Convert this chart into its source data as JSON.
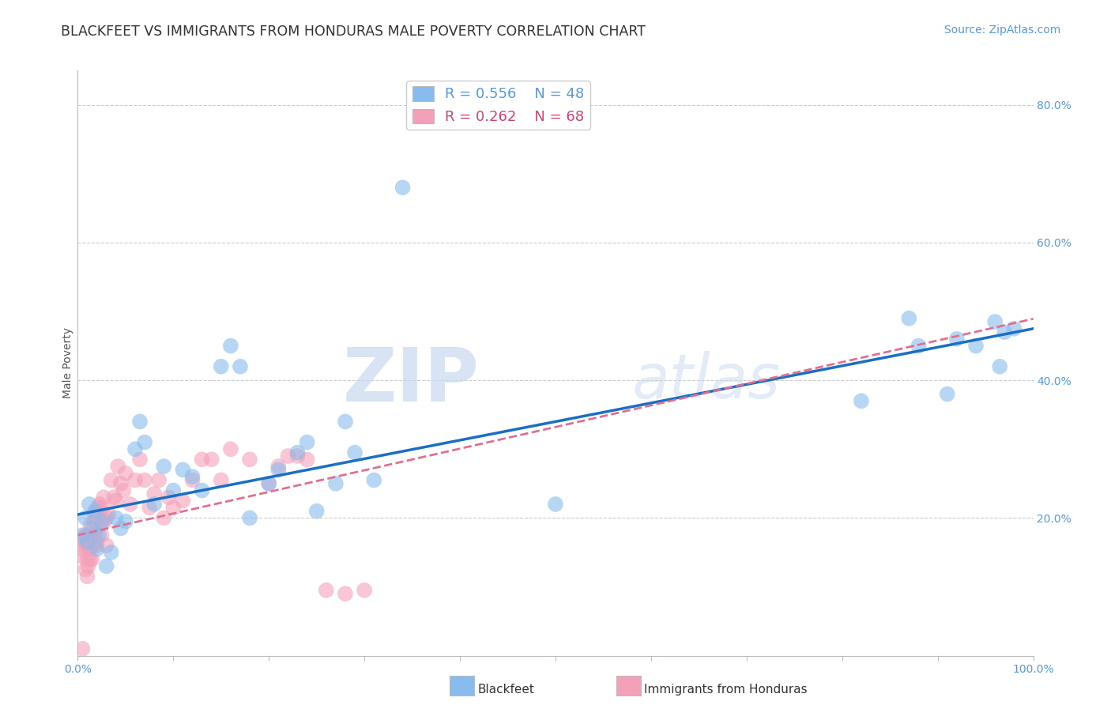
{
  "title": "BLACKFEET VS IMMIGRANTS FROM HONDURAS MALE POVERTY CORRELATION CHART",
  "source": "Source: ZipAtlas.com",
  "xlabel": "",
  "ylabel": "Male Poverty",
  "xlim": [
    0.0,
    1.0
  ],
  "ylim": [
    0.0,
    0.85
  ],
  "xtick_positions": [
    0.0,
    0.1,
    0.2,
    0.3,
    0.4,
    0.5,
    0.6,
    0.7,
    0.8,
    0.9,
    1.0
  ],
  "xtick_labels": [
    "0.0%",
    "",
    "",
    "",
    "",
    "",
    "",
    "",
    "",
    "",
    "100.0%"
  ],
  "ytick_positions": [
    0.0,
    0.2,
    0.4,
    0.6,
    0.8
  ],
  "ytick_labels": [
    "",
    "20.0%",
    "40.0%",
    "60.0%",
    "80.0%"
  ],
  "blue_R": 0.556,
  "blue_N": 48,
  "pink_R": 0.262,
  "pink_N": 68,
  "blue_color": "#88bbee",
  "pink_color": "#f4a0b8",
  "blue_line_color": "#1a6fc4",
  "pink_line_color": "#e07090",
  "watermark_zip": "ZIP",
  "watermark_atlas": "atlas",
  "grid_color": "#cccccc",
  "background_color": "#ffffff",
  "title_fontsize": 12.5,
  "axis_label_fontsize": 10,
  "tick_fontsize": 10,
  "legend_fontsize": 13,
  "source_fontsize": 10,
  "blue_line_x0": 0.0,
  "blue_line_y0": 0.205,
  "blue_line_x1": 1.0,
  "blue_line_y1": 0.475,
  "pink_line_x0": 0.0,
  "pink_line_y0": 0.175,
  "pink_line_x1": 0.35,
  "pink_line_y1": 0.285,
  "blue_pts_x": [
    0.005,
    0.008,
    0.01,
    0.012,
    0.015,
    0.018,
    0.02,
    0.022,
    0.025,
    0.03,
    0.035,
    0.04,
    0.045,
    0.05,
    0.06,
    0.065,
    0.07,
    0.08,
    0.09,
    0.1,
    0.11,
    0.12,
    0.13,
    0.15,
    0.16,
    0.17,
    0.18,
    0.2,
    0.21,
    0.23,
    0.24,
    0.25,
    0.27,
    0.29,
    0.31,
    0.28,
    0.5,
    0.34,
    0.82,
    0.87,
    0.88,
    0.91,
    0.92,
    0.94,
    0.96,
    0.965,
    0.97,
    0.98
  ],
  "blue_pts_y": [
    0.175,
    0.2,
    0.165,
    0.22,
    0.185,
    0.21,
    0.155,
    0.175,
    0.195,
    0.13,
    0.15,
    0.2,
    0.185,
    0.195,
    0.3,
    0.34,
    0.31,
    0.22,
    0.275,
    0.24,
    0.27,
    0.26,
    0.24,
    0.42,
    0.45,
    0.42,
    0.2,
    0.25,
    0.27,
    0.295,
    0.31,
    0.21,
    0.25,
    0.295,
    0.255,
    0.34,
    0.22,
    0.68,
    0.37,
    0.49,
    0.45,
    0.38,
    0.46,
    0.45,
    0.485,
    0.42,
    0.47,
    0.475
  ],
  "pink_pts_x": [
    0.003,
    0.005,
    0.006,
    0.007,
    0.008,
    0.008,
    0.009,
    0.01,
    0.01,
    0.01,
    0.011,
    0.012,
    0.013,
    0.013,
    0.014,
    0.015,
    0.015,
    0.016,
    0.017,
    0.018,
    0.018,
    0.019,
    0.02,
    0.02,
    0.021,
    0.022,
    0.023,
    0.024,
    0.025,
    0.026,
    0.027,
    0.028,
    0.03,
    0.03,
    0.032,
    0.035,
    0.038,
    0.04,
    0.042,
    0.045,
    0.048,
    0.05,
    0.055,
    0.06,
    0.065,
    0.07,
    0.075,
    0.08,
    0.085,
    0.09,
    0.095,
    0.1,
    0.11,
    0.12,
    0.13,
    0.14,
    0.15,
    0.16,
    0.18,
    0.2,
    0.21,
    0.22,
    0.23,
    0.24,
    0.26,
    0.28,
    0.3,
    0.005
  ],
  "pink_pts_y": [
    0.145,
    0.155,
    0.17,
    0.165,
    0.175,
    0.125,
    0.16,
    0.14,
    0.175,
    0.115,
    0.13,
    0.155,
    0.19,
    0.14,
    0.17,
    0.14,
    0.175,
    0.16,
    0.195,
    0.175,
    0.205,
    0.165,
    0.16,
    0.185,
    0.215,
    0.21,
    0.22,
    0.19,
    0.175,
    0.215,
    0.23,
    0.195,
    0.2,
    0.16,
    0.205,
    0.255,
    0.23,
    0.225,
    0.275,
    0.25,
    0.24,
    0.265,
    0.22,
    0.255,
    0.285,
    0.255,
    0.215,
    0.235,
    0.255,
    0.2,
    0.23,
    0.215,
    0.225,
    0.255,
    0.285,
    0.285,
    0.255,
    0.3,
    0.285,
    0.25,
    0.275,
    0.29,
    0.29,
    0.285,
    0.095,
    0.09,
    0.095,
    0.01
  ]
}
